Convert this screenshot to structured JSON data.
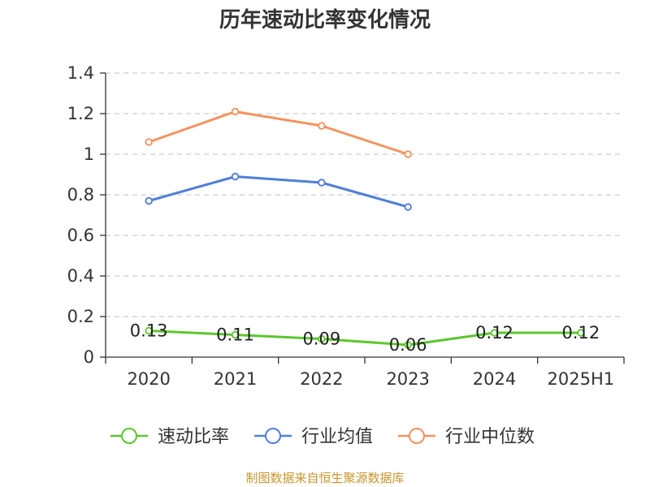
{
  "title": "历年速动比率变化情况",
  "source": "制图数据来自恒生聚源数据库",
  "colors": {
    "速动比率": "#5cc72e",
    "行业均值": "#4f7fd9",
    "行业中位数": "#f5925e"
  },
  "chart_data": {
    "type": "line",
    "title": "历年速动比率变化情况",
    "categories": [
      "2020",
      "2021",
      "2022",
      "2023",
      "2024",
      "2025H1"
    ],
    "y_ticks": [
      "0",
      "0.2",
      "0.4",
      "0.6",
      "0.8",
      "1",
      "1.2",
      "1.4"
    ],
    "ylim": [
      0,
      1.4
    ],
    "grid": true,
    "legend_position": "bottom",
    "series": [
      {
        "name": "速动比率",
        "values": [
          0.13,
          0.11,
          0.09,
          0.06,
          0.12,
          0.12
        ],
        "labels": [
          "0.13",
          "0.11",
          "0.09",
          "0.06",
          "0.12",
          "0.12"
        ]
      },
      {
        "name": "行业均值",
        "values": [
          0.77,
          0.89,
          0.86,
          0.74,
          null,
          null
        ]
      },
      {
        "name": "行业中位数",
        "values": [
          1.06,
          1.21,
          1.14,
          1.0,
          null,
          null
        ]
      }
    ]
  }
}
